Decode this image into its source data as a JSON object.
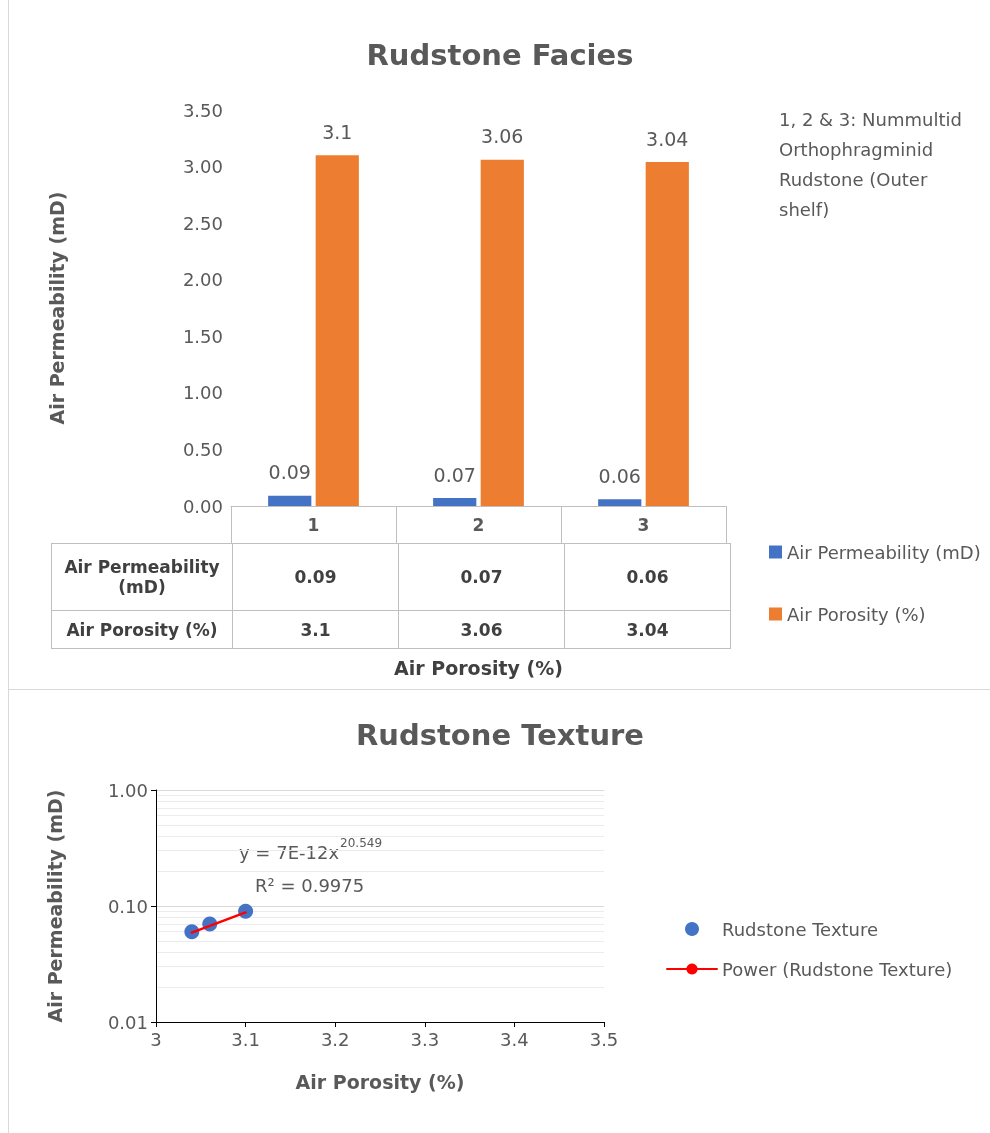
{
  "chart_data": [
    {
      "type": "bar",
      "title": "Rudstone Facies",
      "ylabel": "Air Permeability (mD)",
      "xlabel": "Air Porosity (%)",
      "categories": [
        "1",
        "2",
        "3"
      ],
      "series": [
        {
          "name": "Air Permeability (mD)",
          "color": "#4472c4",
          "values": [
            0.09,
            0.07,
            0.06
          ],
          "value_labels": [
            "0.09",
            "0.07",
            "0.06"
          ]
        },
        {
          "name": "Air Porosity (%)",
          "color": "#ed7d31",
          "values": [
            3.1,
            3.06,
            3.04
          ],
          "value_labels": [
            "3.1",
            "3.06",
            "3.04"
          ]
        }
      ],
      "ylim": [
        0,
        3.5
      ],
      "yticks": [
        {
          "value": 0,
          "label": "0.00"
        },
        {
          "value": 0.5,
          "label": "0.50"
        },
        {
          "value": 1,
          "label": "1.00"
        },
        {
          "value": 1.5,
          "label": "1.50"
        },
        {
          "value": 2,
          "label": "2.00"
        },
        {
          "value": 2.5,
          "label": "2.50"
        },
        {
          "value": 3,
          "label": "3.00"
        },
        {
          "value": 3.5,
          "label": "3.50"
        }
      ],
      "grid": false,
      "data_labels": true,
      "legend": "right",
      "annotations": [
        "1, 2 & 3: Nummultid Orthophragminid Rudstone (Outer shelf)"
      ]
    },
    {
      "type": "scatter",
      "title": "Rudstone Texture",
      "ylabel": "Air Permeability (mD)",
      "xlabel": "Air Porosity (%)",
      "series": [
        {
          "name": "Rudstone Texture",
          "color": "#4472c4",
          "x": [
            3.04,
            3.06,
            3.1
          ],
          "values": [
            0.06,
            0.07,
            0.09
          ],
          "marker": "circle"
        },
        {
          "name": "Power (Rudstone Texture)",
          "type": "line",
          "color": "#ff0000",
          "x": [
            3.04,
            3.1
          ],
          "values": [
            0.059,
            0.088
          ],
          "marker": "none",
          "line_style": "solid"
        }
      ],
      "xlim": [
        3,
        3.5
      ],
      "xticks": [
        3,
        3.1,
        3.2,
        3.3,
        3.4,
        3.5
      ],
      "ylim": [
        0.01,
        1
      ],
      "yticks": [
        {
          "value": 0.01,
          "label": "0.01"
        },
        {
          "value": 0.1,
          "label": "0.10"
        },
        {
          "value": 1,
          "label": "1.00"
        }
      ],
      "log": "y",
      "grid": "y",
      "legend": "right",
      "annotations": [
        "y = 7E-12x$^{20.549}$",
        "R² = 0.9975"
      ]
    }
  ]
}
